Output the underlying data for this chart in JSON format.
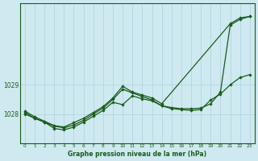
{
  "background_color": "#cee9f0",
  "grid_color": "#b8d8e2",
  "line_color": "#1a5c1a",
  "title": "Graphe pression niveau de la mer (hPa)",
  "xlim": [
    -0.5,
    23.5
  ],
  "ylim": [
    1027.0,
    1031.8
  ],
  "yticks": [
    1028,
    1029
  ],
  "xticks": [
    0,
    1,
    2,
    3,
    4,
    5,
    6,
    7,
    8,
    9,
    10,
    11,
    12,
    13,
    14,
    15,
    16,
    17,
    18,
    19,
    20,
    21,
    22,
    23
  ],
  "line1_x": [
    0,
    1,
    2,
    3,
    4,
    5,
    6,
    7,
    8,
    9,
    10,
    11,
    12,
    13,
    14,
    21,
    22,
    23
  ],
  "line1_y": [
    1028.1,
    1027.9,
    1027.75,
    1027.6,
    1027.55,
    1027.7,
    1027.85,
    1028.05,
    1028.25,
    1028.55,
    1028.95,
    1028.75,
    1028.65,
    1028.55,
    1028.35,
    1031.1,
    1031.3,
    1031.35
  ],
  "line2_x": [
    0,
    1,
    2,
    3,
    4,
    5,
    6,
    7,
    8,
    9,
    10,
    11,
    12,
    13,
    14,
    15,
    16,
    17,
    18,
    19,
    20,
    21,
    22,
    23
  ],
  "line2_y": [
    1028.05,
    1027.85,
    1027.72,
    1027.58,
    1027.52,
    1027.62,
    1027.78,
    1028.0,
    1028.2,
    1028.5,
    1028.85,
    1028.72,
    1028.6,
    1028.48,
    1028.28,
    1028.22,
    1028.18,
    1028.18,
    1028.2,
    1028.35,
    1028.75,
    1031.05,
    1031.25,
    1031.35
  ],
  "line3_x": [
    0,
    1,
    2,
    3,
    4,
    5,
    6,
    7,
    8,
    9,
    10,
    11,
    12,
    13,
    14,
    15,
    16,
    17,
    18,
    19,
    20,
    21,
    22,
    23
  ],
  "line3_y": [
    1028.0,
    1027.85,
    1027.72,
    1027.5,
    1027.45,
    1027.55,
    1027.72,
    1027.92,
    1028.12,
    1028.4,
    1028.32,
    1028.62,
    1028.52,
    1028.45,
    1028.28,
    1028.18,
    1028.15,
    1028.12,
    1028.15,
    1028.48,
    1028.68,
    1029.0,
    1029.25,
    1029.35
  ]
}
